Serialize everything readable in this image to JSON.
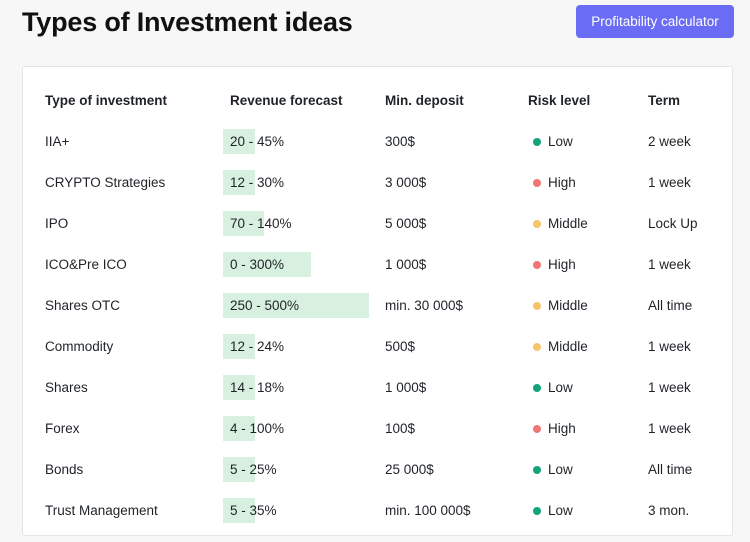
{
  "header": {
    "title": "Types of Investment ideas",
    "calc_button": "Profitability calculator"
  },
  "colors": {
    "accent": "#6a6cf5",
    "bar": "#d8f0df",
    "risk_low": "#12a37a",
    "risk_high": "#f07575",
    "risk_middle": "#f5c56a"
  },
  "table": {
    "columns": [
      "Type of investment",
      "Revenue forecast",
      "Min. deposit",
      "Risk level",
      "Term"
    ],
    "rows": [
      {
        "type": "IIA+",
        "revenue": "20 - 45%",
        "revenue_max_pct": 45,
        "deposit": "300$",
        "risk": "Low",
        "risk_key": "low",
        "term": "2 week"
      },
      {
        "type": "CRYPTO Strategies",
        "revenue": "12 - 30%",
        "revenue_max_pct": 30,
        "deposit": "3 000$",
        "risk": "High",
        "risk_key": "high",
        "term": "1 week"
      },
      {
        "type": "IPO",
        "revenue": "70 - 140%",
        "revenue_max_pct": 140,
        "deposit": "5 000$",
        "risk": "Middle",
        "risk_key": "middle",
        "term": "Lock Up"
      },
      {
        "type": "ICO&Pre ICO",
        "revenue": "0 - 300%",
        "revenue_max_pct": 300,
        "deposit": "1 000$",
        "risk": "High",
        "risk_key": "high",
        "term": "1 week"
      },
      {
        "type": "Shares OTC",
        "revenue": "250 - 500%",
        "revenue_max_pct": 500,
        "deposit": "min. 30 000$",
        "risk": "Middle",
        "risk_key": "middle",
        "term": "All time"
      },
      {
        "type": "Commodity",
        "revenue": "12 - 24%",
        "revenue_max_pct": 24,
        "deposit": "500$",
        "risk": "Middle",
        "risk_key": "middle",
        "term": "1 week"
      },
      {
        "type": "Shares",
        "revenue": "14 - 18%",
        "revenue_max_pct": 18,
        "deposit": "1 000$",
        "risk": "Low",
        "risk_key": "low",
        "term": "1 week"
      },
      {
        "type": "Forex",
        "revenue": "4 - 100%",
        "revenue_max_pct": 100,
        "deposit": "100$",
        "risk": "High",
        "risk_key": "high",
        "term": "1 week"
      },
      {
        "type": "Bonds",
        "revenue": "5 - 25%",
        "revenue_max_pct": 25,
        "deposit": "25 000$",
        "risk": "Low",
        "risk_key": "low",
        "term": "All time"
      },
      {
        "type": "Trust Management",
        "revenue": "5 - 35%",
        "revenue_max_pct": 35,
        "deposit": "min. 100 000$",
        "risk": "Low",
        "risk_key": "low",
        "term": "3 mon."
      }
    ]
  }
}
